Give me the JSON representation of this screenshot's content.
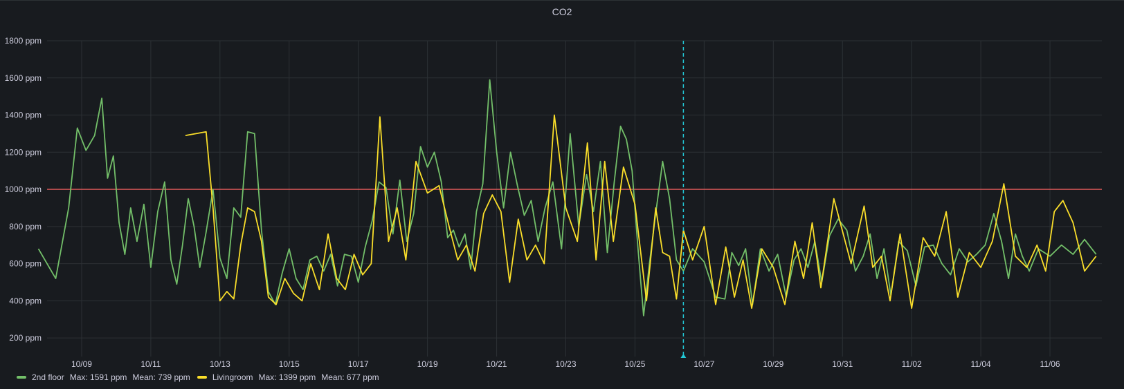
{
  "panel": {
    "title": "CO2"
  },
  "legend": [
    {
      "name": "2nd floor",
      "color": "#73bf69",
      "max": "Max: 1591 ppm",
      "mean": "Mean: 739 ppm"
    },
    {
      "name": "Livingroom",
      "color": "#fade2a",
      "max": "Max: 1399 ppm",
      "mean": "Mean: 677 ppm"
    }
  ],
  "chart_data": {
    "type": "line",
    "title": "CO2",
    "x_start": "10/08",
    "x_end": "11/07",
    "x_ticks": [
      "10/09",
      "10/11",
      "10/13",
      "10/15",
      "10/17",
      "10/19",
      "10/21",
      "10/23",
      "10/25",
      "10/27",
      "10/29",
      "10/31",
      "11/02",
      "11/04",
      "11/06"
    ],
    "y_ticks": [
      "200 ppm",
      "400 ppm",
      "600 ppm",
      "800 ppm",
      "1000 ppm",
      "1200 ppm",
      "1400 ppm",
      "1600 ppm",
      "1800 ppm"
    ],
    "ylim": [
      100,
      1800
    ],
    "threshold": {
      "value": 1000,
      "color": "#e05a5a"
    },
    "marker": {
      "date": "10/26",
      "color": "#22c8d6"
    },
    "grid": true,
    "legend_position": "bottom-left",
    "series": [
      {
        "name": "2nd floor",
        "color": "#73bf69",
        "points": [
          [
            "10/08",
            680
          ],
          [
            "10/08",
            520
          ],
          [
            "10/09",
            900
          ],
          [
            "10/09",
            1330
          ],
          [
            "10/09",
            1210
          ],
          [
            "10/09",
            1290
          ],
          [
            "10/10",
            1490
          ],
          [
            "10/10",
            1060
          ],
          [
            "10/10",
            1180
          ],
          [
            "10/10",
            820
          ],
          [
            "10/10",
            650
          ],
          [
            "10/10",
            900
          ],
          [
            "10/11",
            720
          ],
          [
            "10/11",
            920
          ],
          [
            "10/11",
            580
          ],
          [
            "10/11",
            880
          ],
          [
            "10/11",
            1040
          ],
          [
            "10/12",
            620
          ],
          [
            "10/12",
            490
          ],
          [
            "10/12",
            700
          ],
          [
            "10/12",
            950
          ],
          [
            "10/12",
            800
          ],
          [
            "10/12",
            580
          ],
          [
            "10/13",
            770
          ],
          [
            "10/13",
            1000
          ],
          [
            "10/13",
            630
          ],
          [
            "10/13",
            520
          ],
          [
            "10/13",
            900
          ],
          [
            "10/14",
            850
          ],
          [
            "10/14",
            1310
          ],
          [
            "10/14",
            1300
          ],
          [
            "10/14",
            780
          ],
          [
            "10/14",
            450
          ],
          [
            "10/15",
            380
          ],
          [
            "10/15",
            550
          ],
          [
            "10/15",
            680
          ],
          [
            "10/15",
            520
          ],
          [
            "10/15",
            460
          ],
          [
            "10/16",
            620
          ],
          [
            "10/16",
            640
          ],
          [
            "10/16",
            560
          ],
          [
            "10/16",
            650
          ],
          [
            "10/16",
            480
          ],
          [
            "10/17",
            650
          ],
          [
            "10/17",
            640
          ],
          [
            "10/17",
            500
          ],
          [
            "10/17",
            690
          ],
          [
            "10/17",
            830
          ],
          [
            "10/18",
            1040
          ],
          [
            "10/18",
            1010
          ],
          [
            "10/18",
            760
          ],
          [
            "10/18",
            1050
          ],
          [
            "10/18",
            720
          ],
          [
            "10/19",
            870
          ],
          [
            "10/19",
            1230
          ],
          [
            "10/19",
            1120
          ],
          [
            "10/19",
            1200
          ],
          [
            "10/19",
            1040
          ],
          [
            "10/20",
            740
          ],
          [
            "10/20",
            780
          ],
          [
            "10/20",
            690
          ],
          [
            "10/20",
            760
          ],
          [
            "10/20",
            570
          ],
          [
            "10/20",
            880
          ],
          [
            "10/21",
            1030
          ],
          [
            "10/21",
            1590
          ],
          [
            "10/21",
            1200
          ],
          [
            "10/21",
            900
          ],
          [
            "10/21",
            1200
          ],
          [
            "10/22",
            1020
          ],
          [
            "10/22",
            860
          ],
          [
            "10/22",
            940
          ],
          [
            "10/22",
            720
          ],
          [
            "10/22",
            900
          ],
          [
            "10/23",
            1040
          ],
          [
            "10/23",
            680
          ],
          [
            "10/23",
            1300
          ],
          [
            "10/23",
            800
          ],
          [
            "10/24",
            1080
          ],
          [
            "10/24",
            880
          ],
          [
            "10/24",
            1150
          ],
          [
            "10/24",
            660
          ],
          [
            "10/24",
            1040
          ],
          [
            "10/25",
            1340
          ],
          [
            "10/25",
            1270
          ],
          [
            "10/25",
            1100
          ],
          [
            "10/25",
            690
          ],
          [
            "10/25",
            320
          ],
          [
            "10/25",
            600
          ],
          [
            "10/26",
            870
          ],
          [
            "10/26",
            1150
          ],
          [
            "10/26",
            950
          ],
          [
            "10/26",
            620
          ],
          [
            "10/26",
            560
          ],
          [
            "10/27",
            680
          ],
          [
            "10/27",
            610
          ],
          [
            "10/27",
            420
          ],
          [
            "10/28",
            410
          ],
          [
            "10/28",
            660
          ],
          [
            "10/28",
            590
          ],
          [
            "10/28",
            680
          ],
          [
            "10/28",
            380
          ],
          [
            "10/29",
            680
          ],
          [
            "10/29",
            560
          ],
          [
            "10/29",
            650
          ],
          [
            "10/29",
            420
          ],
          [
            "10/30",
            620
          ],
          [
            "10/30",
            680
          ],
          [
            "10/30",
            580
          ],
          [
            "10/30",
            720
          ],
          [
            "10/30",
            500
          ],
          [
            "10/31",
            750
          ],
          [
            "10/31",
            840
          ],
          [
            "10/31",
            780
          ],
          [
            "10/31",
            560
          ],
          [
            "11/01",
            640
          ],
          [
            "11/01",
            760
          ],
          [
            "11/01",
            520
          ],
          [
            "11/01",
            680
          ],
          [
            "11/01",
            430
          ],
          [
            "11/02",
            720
          ],
          [
            "11/02",
            670
          ],
          [
            "11/02",
            480
          ],
          [
            "11/02",
            690
          ],
          [
            "11/03",
            700
          ],
          [
            "11/03",
            600
          ],
          [
            "11/03",
            540
          ],
          [
            "11/03",
            680
          ],
          [
            "11/04",
            610
          ],
          [
            "11/04",
            650
          ],
          [
            "11/04",
            700
          ],
          [
            "11/04",
            870
          ],
          [
            "11/05",
            720
          ],
          [
            "11/05",
            520
          ],
          [
            "11/05",
            760
          ],
          [
            "11/05",
            640
          ],
          [
            "11/05",
            560
          ],
          [
            "11/06",
            680
          ],
          [
            "11/06",
            640
          ],
          [
            "11/06",
            700
          ],
          [
            "11/07",
            650
          ],
          [
            "11/07",
            730
          ],
          [
            "11/07",
            650
          ]
        ]
      },
      {
        "name": "Livingroom",
        "color": "#fade2a",
        "points": [
          [
            "10/12",
            1290
          ],
          [
            "10/13",
            1310
          ],
          [
            "10/13",
            900
          ],
          [
            "10/13",
            400
          ],
          [
            "10/13",
            450
          ],
          [
            "10/13",
            410
          ],
          [
            "10/14",
            700
          ],
          [
            "10/14",
            900
          ],
          [
            "10/14",
            880
          ],
          [
            "10/14",
            720
          ],
          [
            "10/14",
            420
          ],
          [
            "10/15",
            380
          ],
          [
            "10/15",
            520
          ],
          [
            "10/15",
            440
          ],
          [
            "10/15",
            400
          ],
          [
            "10/16",
            600
          ],
          [
            "10/16",
            460
          ],
          [
            "10/16",
            760
          ],
          [
            "10/16",
            520
          ],
          [
            "10/17",
            460
          ],
          [
            "10/17",
            650
          ],
          [
            "10/17",
            540
          ],
          [
            "10/17",
            600
          ],
          [
            "10/18",
            1390
          ],
          [
            "10/18",
            720
          ],
          [
            "10/18",
            900
          ],
          [
            "10/18",
            620
          ],
          [
            "10/19",
            1150
          ],
          [
            "10/19",
            980
          ],
          [
            "10/19",
            1020
          ],
          [
            "10/20",
            800
          ],
          [
            "10/20",
            620
          ],
          [
            "10/20",
            700
          ],
          [
            "10/20",
            560
          ],
          [
            "10/21",
            870
          ],
          [
            "10/21",
            970
          ],
          [
            "10/21",
            880
          ],
          [
            "10/21",
            500
          ],
          [
            "10/22",
            840
          ],
          [
            "10/22",
            620
          ],
          [
            "10/22",
            700
          ],
          [
            "10/22",
            600
          ],
          [
            "10/23",
            1400
          ],
          [
            "10/23",
            900
          ],
          [
            "10/23",
            720
          ],
          [
            "10/24",
            1250
          ],
          [
            "10/24",
            620
          ],
          [
            "10/24",
            1150
          ],
          [
            "10/24",
            720
          ],
          [
            "10/25",
            1120
          ],
          [
            "10/25",
            920
          ],
          [
            "10/25",
            400
          ],
          [
            "10/26",
            900
          ],
          [
            "10/26",
            660
          ],
          [
            "10/26",
            640
          ],
          [
            "10/26",
            410
          ],
          [
            "10/26",
            780
          ],
          [
            "10/27",
            620
          ],
          [
            "10/27",
            800
          ],
          [
            "10/27",
            380
          ],
          [
            "10/28",
            690
          ],
          [
            "10/28",
            420
          ],
          [
            "10/28",
            620
          ],
          [
            "10/28",
            360
          ],
          [
            "10/29",
            680
          ],
          [
            "10/29",
            580
          ],
          [
            "10/29",
            380
          ],
          [
            "10/30",
            720
          ],
          [
            "10/30",
            520
          ],
          [
            "10/30",
            820
          ],
          [
            "10/30",
            470
          ],
          [
            "10/31",
            950
          ],
          [
            "10/31",
            600
          ],
          [
            "11/01",
            910
          ],
          [
            "11/01",
            580
          ],
          [
            "11/01",
            640
          ],
          [
            "11/01",
            400
          ],
          [
            "11/02",
            760
          ],
          [
            "11/02",
            360
          ],
          [
            "11/02",
            740
          ],
          [
            "11/03",
            640
          ],
          [
            "11/03",
            880
          ],
          [
            "11/03",
            420
          ],
          [
            "11/04",
            660
          ],
          [
            "11/04",
            580
          ],
          [
            "11/04",
            720
          ],
          [
            "11/05",
            1030
          ],
          [
            "11/05",
            640
          ],
          [
            "11/05",
            580
          ],
          [
            "11/06",
            700
          ],
          [
            "11/06",
            560
          ],
          [
            "11/06",
            880
          ],
          [
            "11/06",
            940
          ],
          [
            "11/07",
            820
          ],
          [
            "11/07",
            560
          ],
          [
            "11/07",
            640
          ]
        ]
      }
    ]
  }
}
